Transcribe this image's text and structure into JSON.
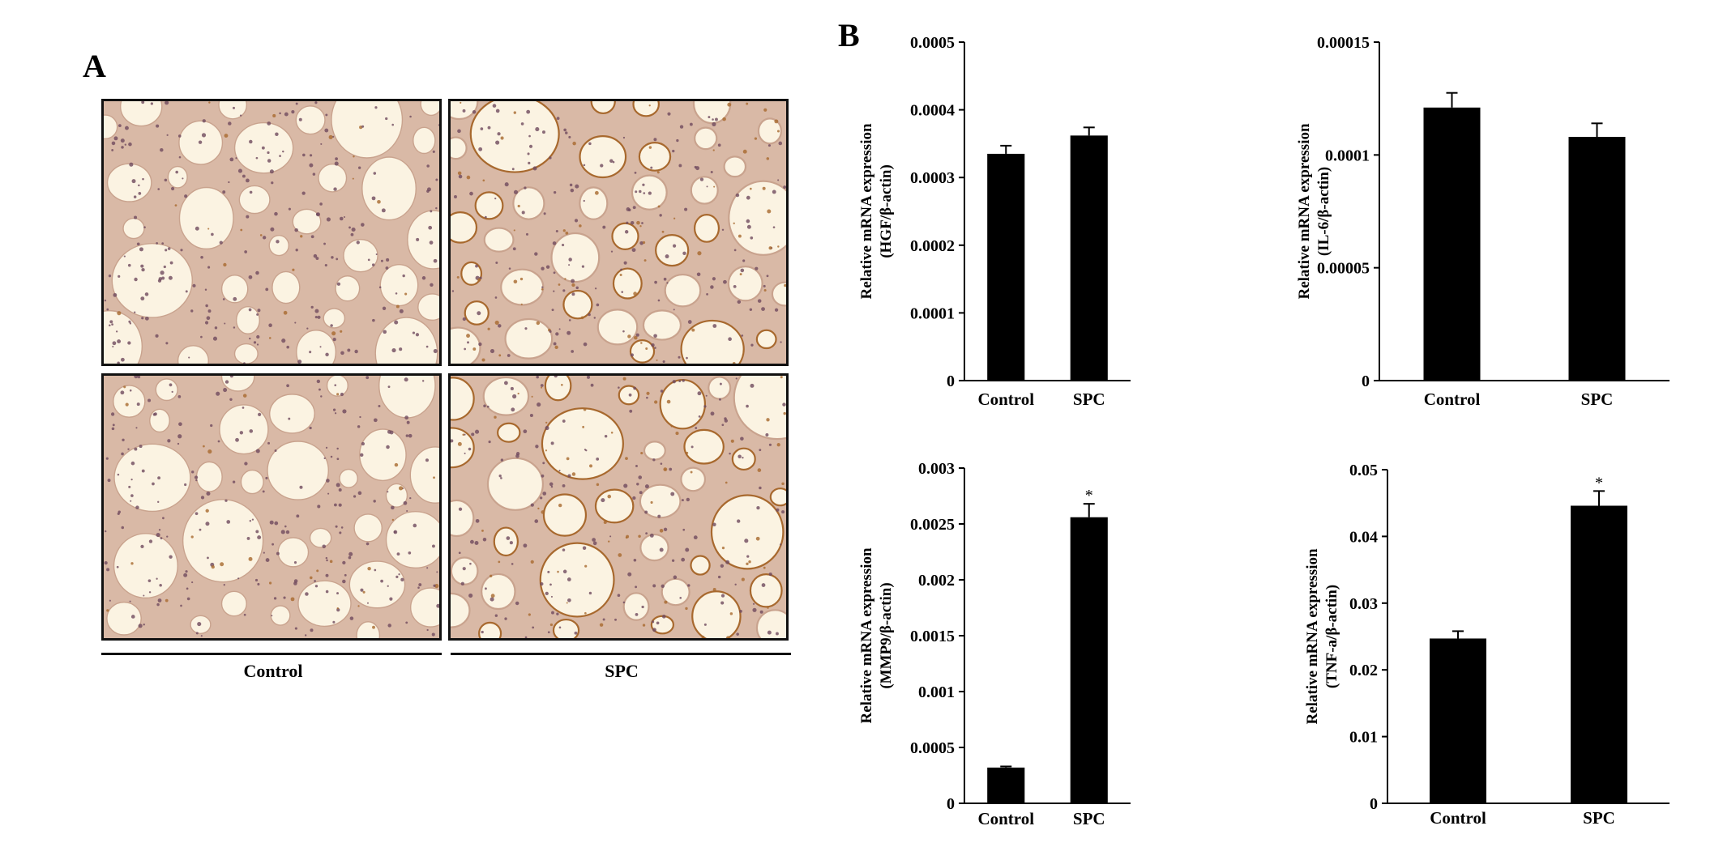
{
  "panel_a": {
    "letter": "A",
    "group_labels": [
      "Control",
      "SPC"
    ],
    "tissue_colors": {
      "background": "#fbf3e2",
      "stroma": "#d9b9a6",
      "nuclei": "#6f4a5e",
      "brown_stain": "#a8692e"
    }
  },
  "panel_b": {
    "letter": "B"
  },
  "chart_data": [
    {
      "type": "bar",
      "categories": [
        "Control",
        "SPC"
      ],
      "values": [
        0.000335,
        0.000362
      ],
      "errors": [
        1.2e-05,
        1.2e-05
      ],
      "significance": [
        "",
        ""
      ],
      "ylabel_lines": [
        "Relative mRNA expression",
        "(HGF/β-actin)"
      ],
      "ylim": [
        0,
        0.0005
      ],
      "yticks": [
        "0",
        "0.0001",
        "0.0002",
        "0.0003",
        "0.0004",
        "0.0005"
      ],
      "bar_color": "#000000"
    },
    {
      "type": "bar",
      "categories": [
        "Control",
        "SPC"
      ],
      "values": [
        0.000121,
        0.000108
      ],
      "errors": [
        6.5e-06,
        6e-06
      ],
      "significance": [
        "",
        ""
      ],
      "ylabel_lines": [
        "Relative mRNA expression",
        "(IL-6/β-actin)"
      ],
      "ylim": [
        0,
        0.00015
      ],
      "yticks": [
        "0",
        "0.00005",
        "0.0001",
        "0.00015"
      ],
      "bar_color": "#000000"
    },
    {
      "type": "bar",
      "categories": [
        "Control",
        "SPC"
      ],
      "values": [
        0.00032,
        0.00256
      ],
      "errors": [
        1e-05,
        0.00012
      ],
      "significance": [
        "",
        "*"
      ],
      "ylabel_lines": [
        "Relative mRNA expression",
        "(MMP9/β-actin)"
      ],
      "ylim": [
        0,
        0.003
      ],
      "yticks": [
        "0",
        "0.0005",
        "0.001",
        "0.0015",
        "0.002",
        "0.0025",
        "0.003"
      ],
      "bar_color": "#000000"
    },
    {
      "type": "bar",
      "categories": [
        "Control",
        "SPC"
      ],
      "values": [
        0.0247,
        0.0446
      ],
      "errors": [
        0.0011,
        0.0022
      ],
      "significance": [
        "",
        "*"
      ],
      "ylabel_lines": [
        "Relative mRNA expression",
        "(TNF-a/β-actin)"
      ],
      "ylim": [
        0,
        0.05
      ],
      "yticks": [
        "0",
        "0.01",
        "0.02",
        "0.03",
        "0.04",
        "0.05"
      ],
      "bar_color": "#000000"
    }
  ]
}
